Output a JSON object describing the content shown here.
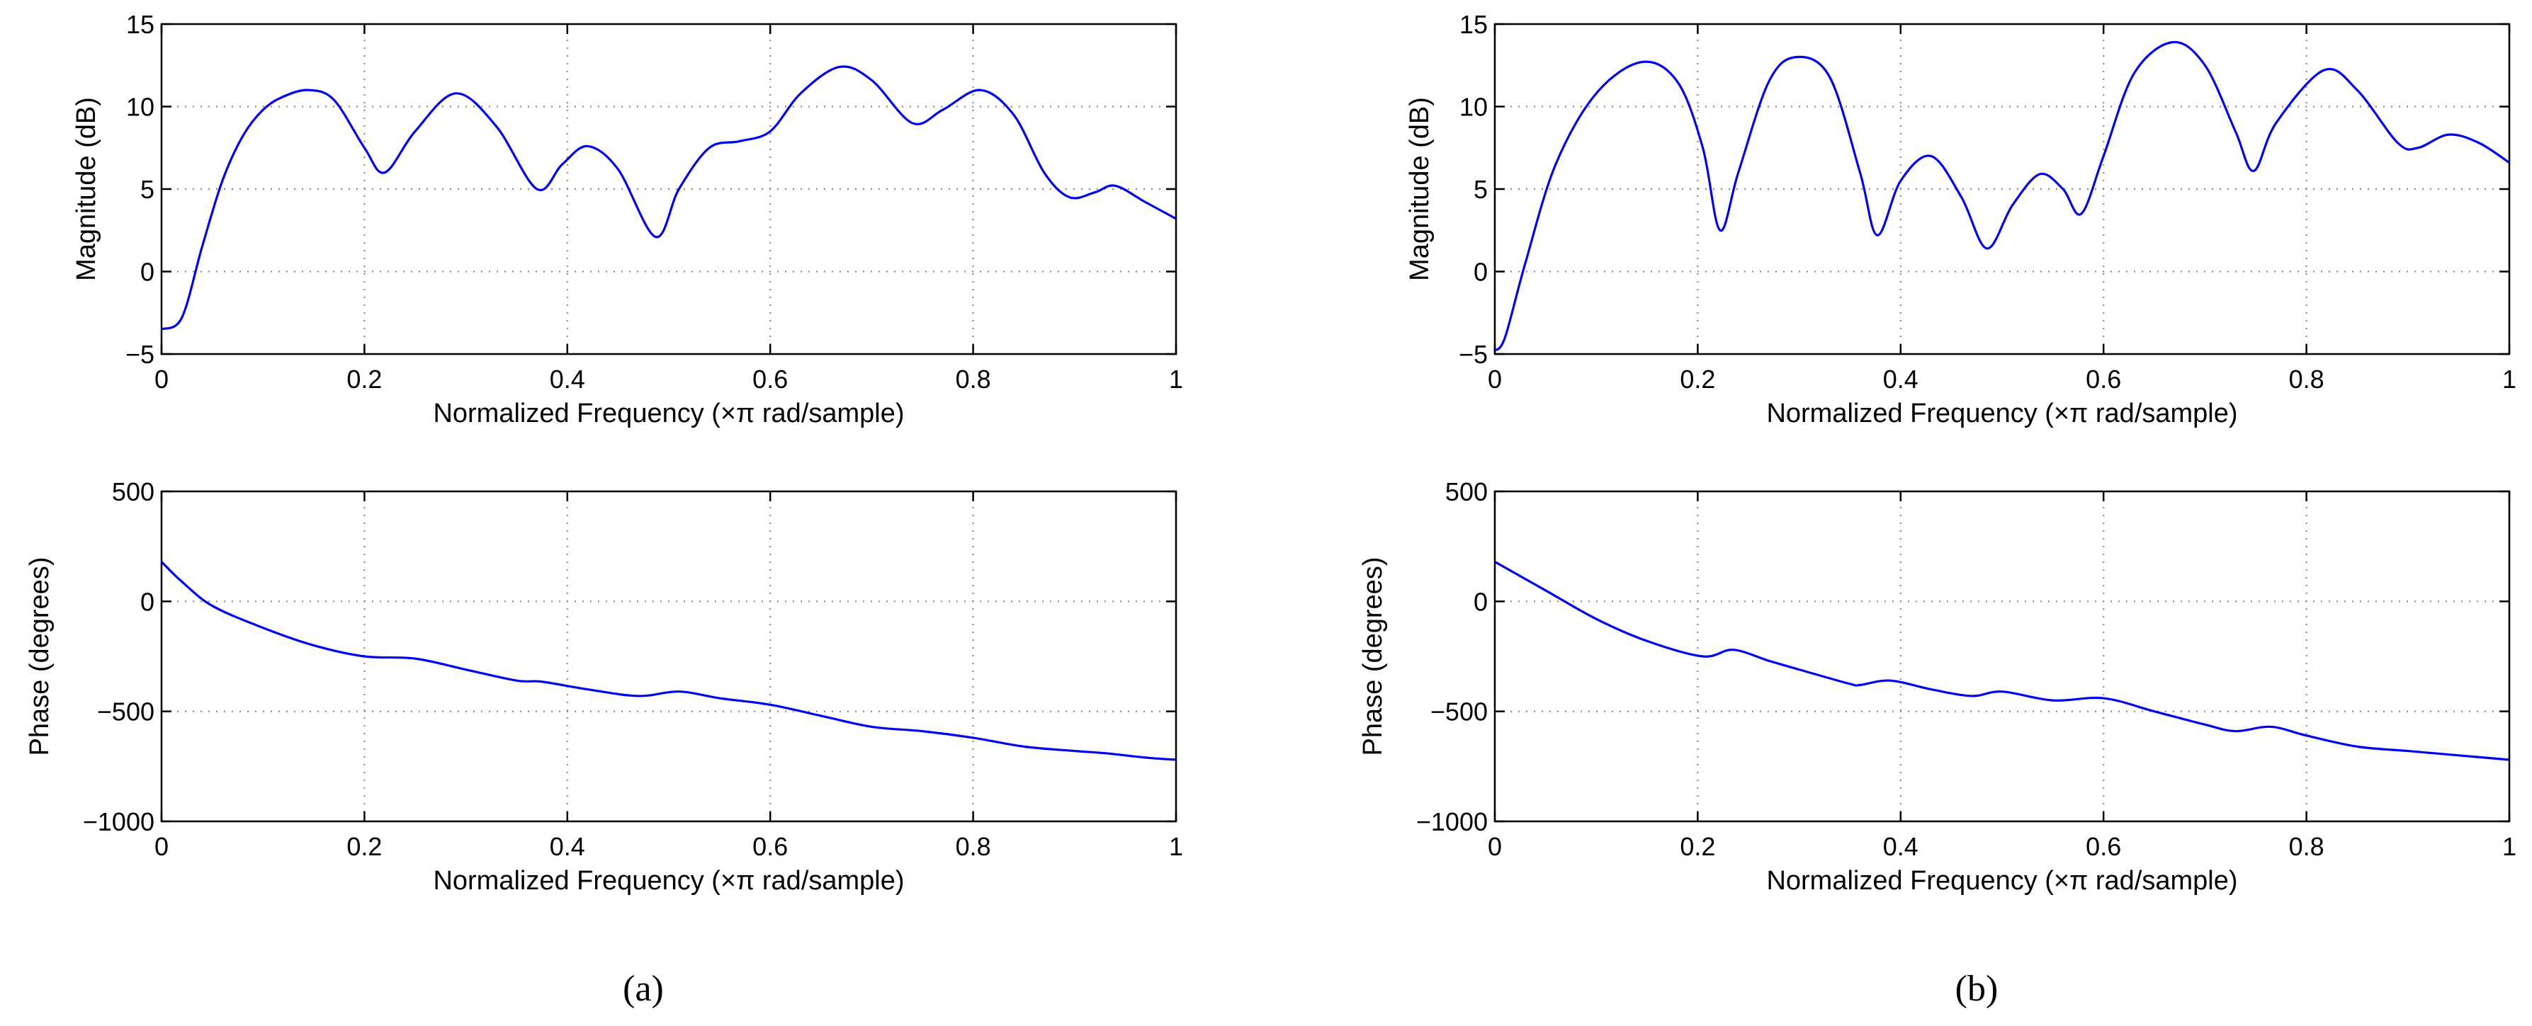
{
  "colors": {
    "curve": "#0000ee",
    "grid": "#8a8a8a",
    "axes": "#000000",
    "background": "#ffffff"
  },
  "captions": [
    "(a)",
    "(b)"
  ],
  "chart_data": [
    {
      "type": "line",
      "panel": "a",
      "position": "top",
      "xlabel": "Normalized Frequency  (×π rad/sample)",
      "ylabel": "Magnitude (dB)",
      "xlim": [
        0,
        1
      ],
      "ylim": [
        -5,
        15
      ],
      "xticks": [
        0,
        0.2,
        0.4,
        0.6,
        0.8,
        1
      ],
      "xtick_labels": [
        "0",
        "0.2",
        "0.4",
        "0.6",
        "0.8",
        "1"
      ],
      "yticks": [
        -5,
        0,
        5,
        10,
        15
      ],
      "ytick_labels": [
        "−5",
        "0",
        "5",
        "10",
        "15"
      ],
      "grid": true,
      "series": [
        {
          "name": "magnitude",
          "x": [
            0,
            0.02,
            0.04,
            0.06,
            0.08,
            0.1,
            0.12,
            0.145,
            0.17,
            0.2,
            0.22,
            0.25,
            0.29,
            0.33,
            0.37,
            0.395,
            0.42,
            0.45,
            0.487,
            0.51,
            0.54,
            0.57,
            0.6,
            0.63,
            0.668,
            0.7,
            0.74,
            0.77,
            0.807,
            0.84,
            0.87,
            0.895,
            0.92,
            0.94,
            0.97,
            1.0
          ],
          "y": [
            -3.5,
            -2.8,
            1.5,
            5.5,
            8.2,
            9.8,
            10.6,
            11.0,
            10.4,
            7.5,
            6.0,
            8.5,
            10.8,
            8.8,
            5.0,
            6.5,
            7.6,
            6.2,
            2.1,
            5.0,
            7.5,
            7.9,
            8.5,
            10.8,
            12.4,
            11.6,
            9.0,
            9.8,
            11.0,
            9.5,
            6.0,
            4.5,
            4.8,
            5.2,
            4.2,
            3.2
          ]
        }
      ]
    },
    {
      "type": "line",
      "panel": "a",
      "position": "bottom",
      "xlabel": "Normalized Frequency  (×π rad/sample)",
      "ylabel": "Phase (degrees)",
      "xlim": [
        0,
        1
      ],
      "ylim": [
        -1000,
        500
      ],
      "xticks": [
        0,
        0.2,
        0.4,
        0.6,
        0.8,
        1
      ],
      "xtick_labels": [
        "0",
        "0.2",
        "0.4",
        "0.6",
        "0.8",
        "1"
      ],
      "yticks": [
        -1000,
        -500,
        0,
        500
      ],
      "ytick_labels": [
        "−1000",
        "−500",
        "0",
        "500"
      ],
      "grid": true,
      "series": [
        {
          "name": "phase",
          "x": [
            0,
            0.02,
            0.05,
            0.1,
            0.15,
            0.2,
            0.25,
            0.3,
            0.35,
            0.375,
            0.42,
            0.47,
            0.51,
            0.55,
            0.6,
            0.65,
            0.7,
            0.75,
            0.8,
            0.85,
            0.9,
            0.93,
            0.97,
            1.0
          ],
          "y": [
            180,
            90,
            -20,
            -120,
            -200,
            -250,
            -260,
            -310,
            -360,
            -365,
            -400,
            -430,
            -410,
            -440,
            -470,
            -520,
            -570,
            -590,
            -620,
            -660,
            -680,
            -690,
            -710,
            -720
          ]
        }
      ]
    },
    {
      "type": "line",
      "panel": "b",
      "position": "top",
      "xlabel": "Normalized Frequency  (×π rad/sample)",
      "ylabel": "Magnitude (dB)",
      "xlim": [
        0,
        1
      ],
      "ylim": [
        -5,
        15
      ],
      "xticks": [
        0,
        0.2,
        0.4,
        0.6,
        0.8,
        1
      ],
      "xtick_labels": [
        "0",
        "0.2",
        "0.4",
        "0.6",
        "0.8",
        "1"
      ],
      "yticks": [
        -5,
        0,
        5,
        10,
        15
      ],
      "ytick_labels": [
        "−5",
        "0",
        "5",
        "10",
        "15"
      ],
      "grid": true,
      "series": [
        {
          "name": "magnitude",
          "x": [
            0,
            0.01,
            0.03,
            0.06,
            0.1,
            0.145,
            0.18,
            0.205,
            0.222,
            0.24,
            0.27,
            0.297,
            0.33,
            0.36,
            0.377,
            0.4,
            0.43,
            0.46,
            0.485,
            0.51,
            0.537,
            0.56,
            0.578,
            0.6,
            0.63,
            0.668,
            0.7,
            0.73,
            0.748,
            0.77,
            0.817,
            0.85,
            0.89,
            0.91,
            0.94,
            0.97,
            1.0
          ],
          "y": [
            -4.8,
            -4.0,
            0.5,
            6.5,
            10.8,
            12.7,
            11.5,
            7.5,
            2.5,
            6.0,
            11.5,
            13.0,
            11.8,
            6.0,
            2.2,
            5.5,
            7.0,
            4.5,
            1.4,
            4.0,
            5.9,
            5.0,
            3.5,
            7.0,
            12.0,
            13.9,
            12.5,
            8.5,
            6.1,
            9.0,
            12.2,
            11.0,
            7.8,
            7.5,
            8.3,
            7.8,
            6.6
          ]
        }
      ]
    },
    {
      "type": "line",
      "panel": "b",
      "position": "bottom",
      "xlabel": "Normalized Frequency  (×π rad/sample)",
      "ylabel": "Phase (degrees)",
      "xlim": [
        0,
        1
      ],
      "ylim": [
        -1000,
        500
      ],
      "xticks": [
        0,
        0.2,
        0.4,
        0.6,
        0.8,
        1
      ],
      "xtick_labels": [
        "0",
        "0.2",
        "0.4",
        "0.6",
        "0.8",
        "1"
      ],
      "yticks": [
        -1000,
        -500,
        0,
        500
      ],
      "ytick_labels": [
        "−1000",
        "−500",
        "0",
        "500"
      ],
      "grid": true,
      "series": [
        {
          "name": "phase",
          "x": [
            0,
            0.05,
            0.1,
            0.15,
            0.205,
            0.235,
            0.27,
            0.3,
            0.35,
            0.36,
            0.39,
            0.43,
            0.47,
            0.5,
            0.55,
            0.6,
            0.65,
            0.7,
            0.73,
            0.765,
            0.8,
            0.85,
            0.9,
            0.95,
            1.0
          ],
          "y": [
            180,
            50,
            -80,
            -180,
            -250,
            -220,
            -270,
            -310,
            -375,
            -380,
            -360,
            -400,
            -430,
            -410,
            -450,
            -440,
            -500,
            -560,
            -590,
            -570,
            -610,
            -660,
            -680,
            -700,
            -720
          ]
        }
      ]
    }
  ]
}
